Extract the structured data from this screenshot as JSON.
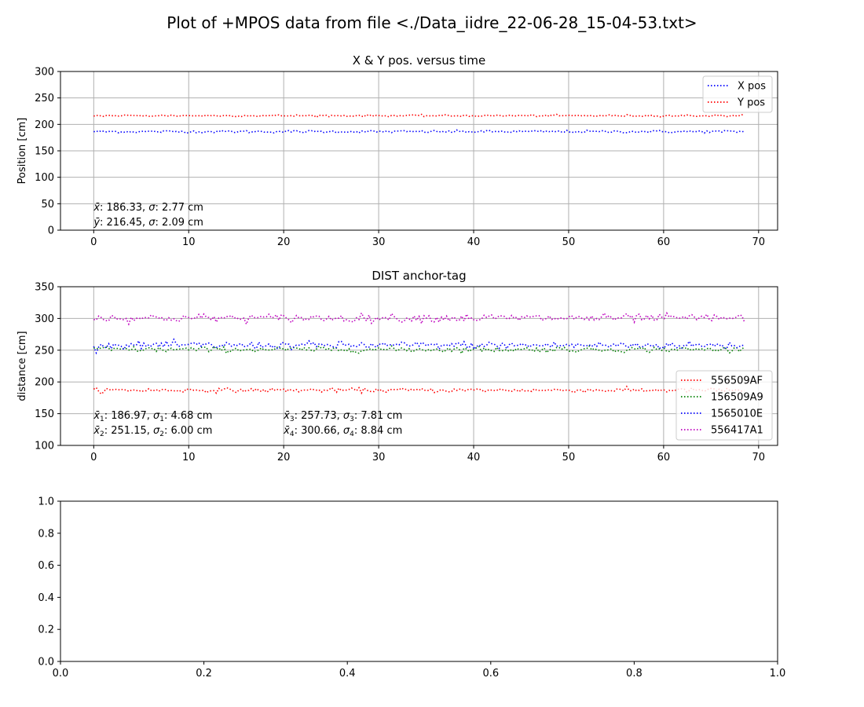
{
  "figure_title": "Plot of +MPOS data from file <./Data_iidre_22-06-28_15-04-53.txt>",
  "colors": {
    "red": "#ff0000",
    "green": "#008000",
    "blue": "#0000ff",
    "magenta": "#bf00bf",
    "grid": "#b0b0b0"
  },
  "chart_data": [
    {
      "type": "line",
      "title": "X & Y pos. versus time",
      "xlabel": "",
      "ylabel": "Position [cm]",
      "xlim": [
        -3.5,
        72
      ],
      "ylim": [
        0,
        300
      ],
      "xticks": [
        0,
        10,
        20,
        30,
        40,
        50,
        60,
        70
      ],
      "yticks": [
        0,
        50,
        100,
        150,
        200,
        250,
        300
      ],
      "grid": true,
      "legend_position": "top-right",
      "x_range": [
        0,
        68.5
      ],
      "series": [
        {
          "name": "X pos",
          "color": "#0000ff",
          "mean": 186.33,
          "sigma": 2.77
        },
        {
          "name": "Y pos",
          "color": "#ff0000",
          "mean": 216.45,
          "sigma": 2.09
        }
      ],
      "annotations": [
        {
          "sym": "x̄",
          "sub": "",
          "text": ": 186.33, ",
          "sig": "σ",
          "sigsub": "",
          "text2": ": 2.77 cm"
        },
        {
          "sym": "ȳ",
          "sub": "",
          "text": ": 216.45, ",
          "sig": "σ",
          "sigsub": "",
          "text2": ": 2.09 cm"
        }
      ]
    },
    {
      "type": "line",
      "title": "DIST anchor-tag",
      "xlabel": "",
      "ylabel": "distance [cm]",
      "xlim": [
        -3.5,
        72
      ],
      "ylim": [
        100,
        350
      ],
      "xticks": [
        0,
        10,
        20,
        30,
        40,
        50,
        60,
        70
      ],
      "yticks": [
        100,
        150,
        200,
        250,
        300,
        350
      ],
      "grid": true,
      "legend_position": "center-right",
      "x_range": [
        0,
        68.5
      ],
      "series": [
        {
          "name": "556509AF",
          "color": "#ff0000",
          "mean": 186.97,
          "sigma": 4.68
        },
        {
          "name": "156509A9",
          "color": "#008000",
          "mean": 251.15,
          "sigma": 6.0
        },
        {
          "name": "1565010E",
          "color": "#0000ff",
          "mean": 257.73,
          "sigma": 7.81
        },
        {
          "name": "556417A1",
          "color": "#bf00bf",
          "mean": 300.66,
          "sigma": 8.84
        }
      ],
      "annotations": [
        {
          "sym": "x̄",
          "sub": "1",
          "text": ": 186.97, ",
          "sig": "σ",
          "sigsub": "1",
          "text2": ": 4.68 cm"
        },
        {
          "sym": "x̄",
          "sub": "2",
          "text": ": 251.15, ",
          "sig": "σ",
          "sigsub": "2",
          "text2": ": 6.00 cm"
        },
        {
          "sym": "x̄",
          "sub": "3",
          "text": ": 257.73, ",
          "sig": "σ",
          "sigsub": "3",
          "text2": ": 7.81 cm"
        },
        {
          "sym": "x̄",
          "sub": "4",
          "text": ": 300.66, ",
          "sig": "σ",
          "sigsub": "4",
          "text2": ": 8.84 cm"
        }
      ]
    },
    {
      "type": "line",
      "title": "",
      "xlabel": "",
      "ylabel": "",
      "xlim": [
        0,
        1
      ],
      "ylim": [
        0,
        1
      ],
      "xticks": [
        0.0,
        0.2,
        0.4,
        0.6,
        0.8,
        1.0
      ],
      "yticks": [
        0.0,
        0.2,
        0.4,
        0.6,
        0.8,
        1.0
      ],
      "grid": false,
      "series": []
    }
  ]
}
